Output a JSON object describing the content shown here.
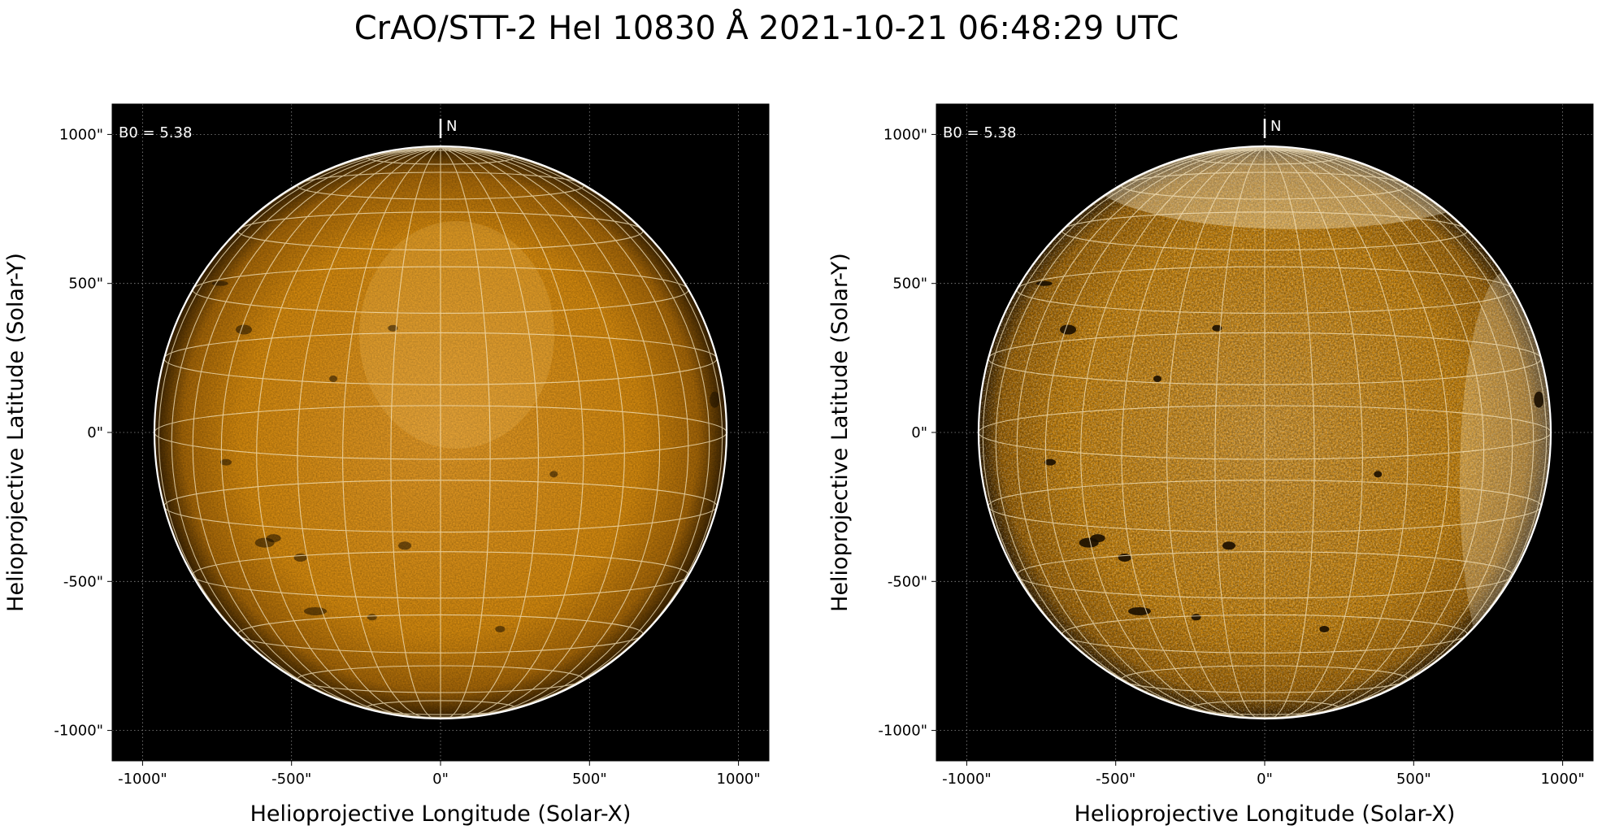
{
  "title": "CrAO/STT-2 HeI 10830 Å 2021-10-21 06:48:29 UTC",
  "panels": [
    {
      "id": "left",
      "b0_label": "B0 = 5.38",
      "north_label": "N",
      "xlabel": "Helioprojective Longitude (Solar-X)",
      "ylabel": "Helioprojective Latitude (Solar-Y)",
      "x_ticks": [
        "-1000\"",
        "-500\"",
        "0\"",
        "500\"",
        "1000\""
      ],
      "y_ticks": [
        "1000\"",
        "500\"",
        "0\"",
        "-500\"",
        "-1000\""
      ],
      "style": "normal"
    },
    {
      "id": "right",
      "b0_label": "B0 = 5.38",
      "north_label": "N",
      "xlabel": "Helioprojective Longitude (Solar-X)",
      "ylabel": "Helioprojective Latitude (Solar-Y)",
      "x_ticks": [
        "-1000\"",
        "-500\"",
        "0\"",
        "500\"",
        "1000\""
      ],
      "y_ticks": [
        "1000\"",
        "500\"",
        "0\"",
        "-500\"",
        "-1000\""
      ],
      "style": "enhanced"
    }
  ],
  "colors": {
    "background": "#000000",
    "disk_center": "#f0a22a",
    "disk_mid": "#d88a10",
    "disk_limb": "#3a2200",
    "grid": "#f6e6c0",
    "limb_line": "#ffffff",
    "filament": "#1a0e00"
  }
}
